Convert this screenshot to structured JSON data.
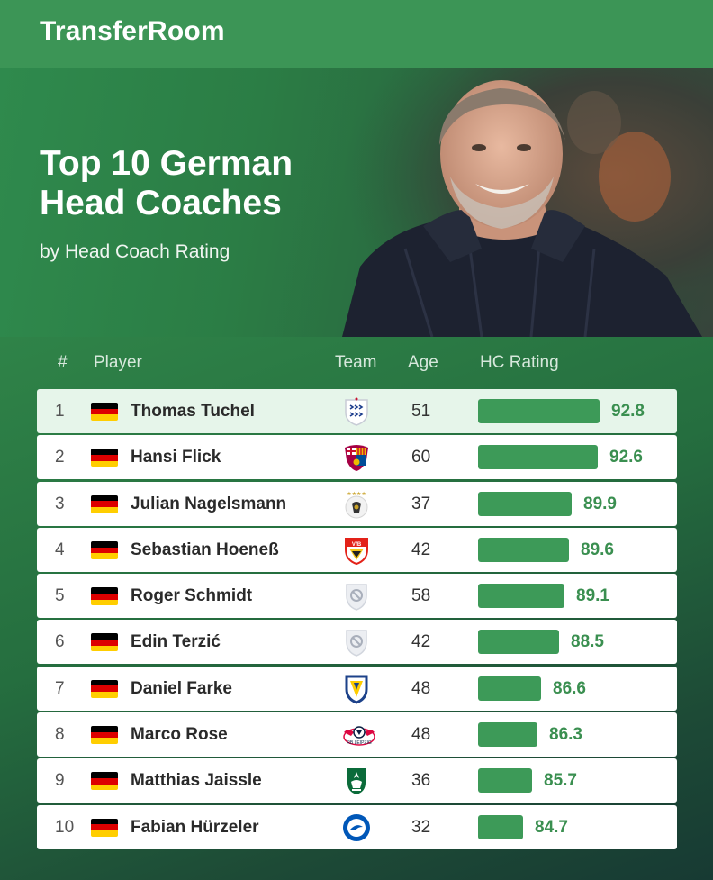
{
  "brand": "TransferRoom",
  "hero": {
    "title_line1": "Top 10 German",
    "title_line2": "Head Coaches",
    "subtitle": "by Head Coach Rating"
  },
  "table": {
    "headers": {
      "rank": "#",
      "player": "Player",
      "team": "Team",
      "age": "Age",
      "rating": "HC Rating"
    },
    "rows": [
      {
        "rank": "1",
        "name": "Thomas Tuchel",
        "team_crest": "england-crest-icon",
        "age": "51",
        "rating": "92.8"
      },
      {
        "rank": "2",
        "name": "Hansi Flick",
        "team_crest": "barcelona-crest-icon",
        "age": "60",
        "rating": "92.6"
      },
      {
        "rank": "3",
        "name": "Julian Nagelsmann",
        "team_crest": "germany-crest-icon",
        "age": "37",
        "rating": "89.9"
      },
      {
        "rank": "4",
        "name": "Sebastian Hoeneß",
        "team_crest": "stuttgart-crest-icon",
        "age": "42",
        "rating": "89.6"
      },
      {
        "rank": "5",
        "name": "Roger Schmidt",
        "team_crest": "unavailable-crest-icon",
        "age": "58",
        "rating": "89.1"
      },
      {
        "rank": "6",
        "name": "Edin Terzić",
        "team_crest": "unavailable-crest-icon",
        "age": "42",
        "rating": "88.5"
      },
      {
        "rank": "7",
        "name": "Daniel Farke",
        "team_crest": "leeds-crest-icon",
        "age": "48",
        "rating": "86.6"
      },
      {
        "rank": "8",
        "name": "Marco Rose",
        "team_crest": "leipzig-crest-icon",
        "age": "48",
        "rating": "86.3"
      },
      {
        "rank": "9",
        "name": "Matthias Jaissle",
        "team_crest": "al-ahli-crest-icon",
        "age": "36",
        "rating": "85.7"
      },
      {
        "rank": "10",
        "name": "Fabian Hürzeler",
        "team_crest": "brighton-crest-icon",
        "age": "32",
        "rating": "84.7"
      }
    ]
  },
  "colors": {
    "accent_green": "#3d9a58",
    "rating_text": "#3a8f50",
    "highlight_row": "#e6f5ea",
    "flag": [
      "#000000",
      "#dd0000",
      "#ffce00"
    ]
  }
}
